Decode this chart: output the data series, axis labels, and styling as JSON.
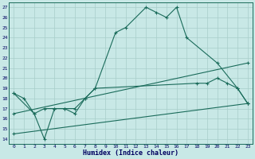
{
  "xlabel": "Humidex (Indice chaleur)",
  "xlim": [
    -0.5,
    23.5
  ],
  "ylim": [
    13.5,
    27.5
  ],
  "yticks": [
    14,
    15,
    16,
    17,
    18,
    19,
    20,
    21,
    22,
    23,
    24,
    25,
    26,
    27
  ],
  "xticks": [
    0,
    1,
    2,
    3,
    4,
    5,
    6,
    7,
    8,
    9,
    10,
    11,
    12,
    13,
    14,
    15,
    16,
    17,
    18,
    19,
    20,
    21,
    22,
    23
  ],
  "bg_color": "#c8e8e6",
  "grid_color": "#a8ceca",
  "line_color": "#1a6b5a",
  "series": [
    {
      "x": [
        0,
        1,
        2,
        3,
        4,
        5,
        6,
        7,
        8,
        10,
        11,
        13,
        14,
        15,
        16,
        17,
        20,
        22,
        23
      ],
      "y": [
        18.5,
        18.0,
        16.5,
        14.0,
        17.0,
        17.0,
        16.5,
        18.0,
        19.0,
        24.5,
        25.0,
        27.0,
        26.5,
        26.0,
        27.0,
        24.0,
        21.5,
        19.0,
        17.5
      ]
    },
    {
      "x": [
        0,
        2,
        3,
        4,
        5,
        6,
        7,
        8,
        18,
        19,
        20,
        21,
        22,
        23
      ],
      "y": [
        18.5,
        16.5,
        17.0,
        17.0,
        17.0,
        17.0,
        18.0,
        19.0,
        19.5,
        19.5,
        20.0,
        19.5,
        19.0,
        17.5
      ]
    },
    {
      "x": [
        0,
        23
      ],
      "y": [
        16.5,
        21.5
      ]
    },
    {
      "x": [
        0,
        23
      ],
      "y": [
        14.5,
        17.5
      ]
    }
  ]
}
